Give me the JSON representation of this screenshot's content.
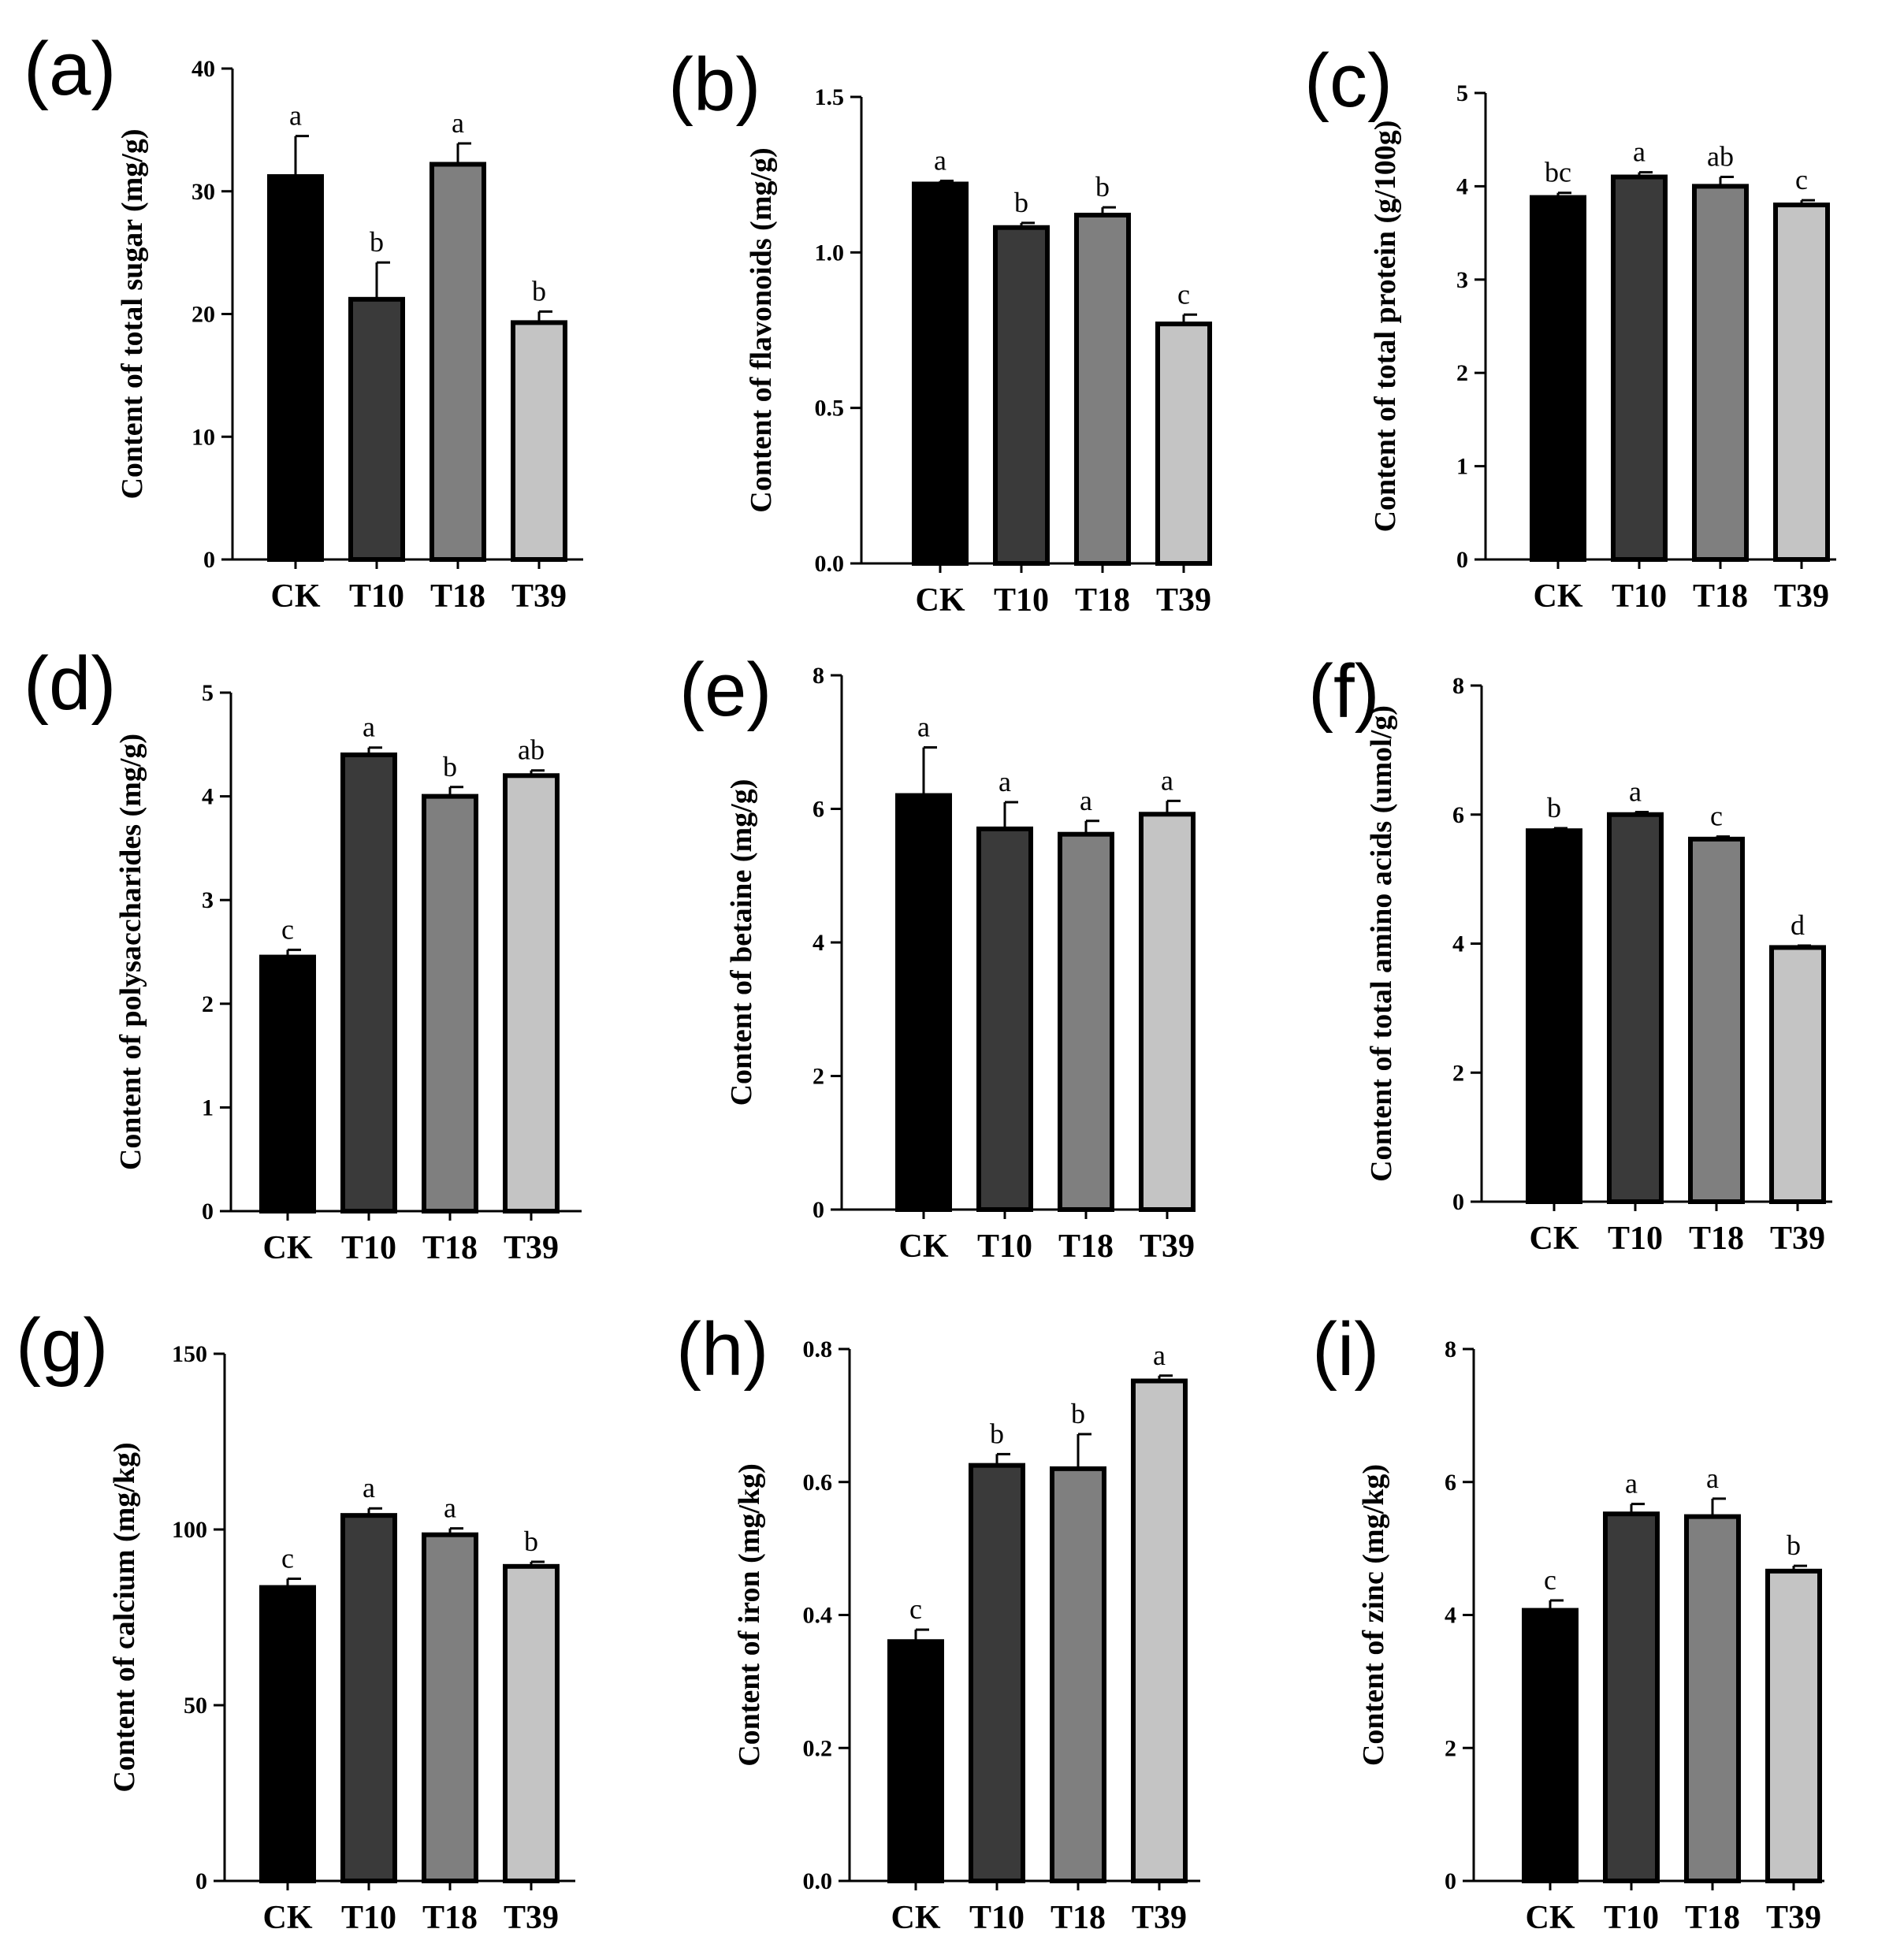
{
  "chart_data": [
    {
      "type": "bar",
      "panel": "(a)",
      "categories": [
        "CK",
        "T10",
        "T18",
        "T39"
      ],
      "values": [
        31.2,
        21.2,
        32.2,
        19.3
      ],
      "errors": [
        3.3,
        3.0,
        1.7,
        0.9
      ],
      "significance": [
        "a",
        "b",
        "a",
        "b"
      ],
      "bar_colors": [
        "#000000",
        "#3a3a3a",
        "#7f7f7f",
        "#c4c4c4"
      ],
      "ylabel": "Content of total sugar (mg/g)",
      "xlabel": "",
      "ylim": [
        0,
        40
      ],
      "yticks": [
        0,
        10,
        20,
        30,
        40
      ],
      "ytick_labels": [
        "0",
        "10",
        "20",
        "30",
        "40"
      ]
    },
    {
      "type": "bar",
      "panel": "(b)",
      "categories": [
        "CK",
        "T10",
        "T18",
        "T39"
      ],
      "values": [
        1.22,
        1.08,
        1.12,
        0.77
      ],
      "errors": [
        0.01,
        0.015,
        0.025,
        0.03
      ],
      "significance": [
        "a",
        "b",
        "b",
        "c"
      ],
      "bar_colors": [
        "#000000",
        "#3a3a3a",
        "#7f7f7f",
        "#c4c4c4"
      ],
      "ylabel": "Content of flavonoids (mg/g)",
      "xlabel": "",
      "ylim": [
        0,
        1.5
      ],
      "yticks": [
        0,
        0.5,
        1.0,
        1.5
      ],
      "ytick_labels": [
        "0.0",
        "0.5",
        "1.0",
        "1.5"
      ]
    },
    {
      "type": "bar",
      "panel": "(c)",
      "categories": [
        "CK",
        "T10",
        "T18",
        "T39"
      ],
      "values": [
        3.88,
        4.1,
        4.0,
        3.8
      ],
      "errors": [
        0.05,
        0.05,
        0.1,
        0.05
      ],
      "significance": [
        "bc",
        "a",
        "ab",
        "c"
      ],
      "bar_colors": [
        "#000000",
        "#3a3a3a",
        "#7f7f7f",
        "#c4c4c4"
      ],
      "ylabel": "Content of total protein (g/100g)",
      "xlabel": "",
      "ylim": [
        0,
        5
      ],
      "yticks": [
        0,
        1,
        2,
        3,
        4,
        5
      ],
      "ytick_labels": [
        "0",
        "1",
        "2",
        "3",
        "4",
        "5"
      ]
    },
    {
      "type": "bar",
      "panel": "(d)",
      "categories": [
        "CK",
        "T10",
        "T18",
        "T39"
      ],
      "values": [
        2.45,
        4.4,
        4.0,
        4.2
      ],
      "errors": [
        0.07,
        0.07,
        0.09,
        0.05
      ],
      "significance": [
        "c",
        "a",
        "b",
        "ab"
      ],
      "bar_colors": [
        "#000000",
        "#3a3a3a",
        "#7f7f7f",
        "#c4c4c4"
      ],
      "ylabel": "Content of polysaccharides (mg/g)",
      "xlabel": "",
      "ylim": [
        0,
        5
      ],
      "yticks": [
        0,
        1,
        2,
        3,
        4,
        5
      ],
      "ytick_labels": [
        "0",
        "1",
        "2",
        "3",
        "4",
        "5"
      ]
    },
    {
      "type": "bar",
      "panel": "(e)",
      "categories": [
        "CK",
        "T10",
        "T18",
        "T39"
      ],
      "values": [
        6.2,
        5.7,
        5.62,
        5.92
      ],
      "errors": [
        0.72,
        0.4,
        0.2,
        0.2
      ],
      "significance": [
        "a",
        "a",
        "a",
        "a"
      ],
      "bar_colors": [
        "#000000",
        "#3a3a3a",
        "#7f7f7f",
        "#c4c4c4"
      ],
      "ylabel": "Content of betaine (mg/g)",
      "xlabel": "",
      "ylim": [
        0,
        8
      ],
      "yticks": [
        0,
        2,
        4,
        6,
        8
      ],
      "ytick_labels": [
        "0",
        "2",
        "4",
        "6",
        "8"
      ]
    },
    {
      "type": "bar",
      "panel": "(f)",
      "categories": [
        "CK",
        "T10",
        "T18",
        "T39"
      ],
      "values": [
        5.75,
        6.0,
        5.62,
        3.94
      ],
      "errors": [
        0.04,
        0.04,
        0.04,
        0.03
      ],
      "significance": [
        "b",
        "a",
        "c",
        "d"
      ],
      "bar_colors": [
        "#000000",
        "#3a3a3a",
        "#7f7f7f",
        "#c4c4c4"
      ],
      "ylabel": "Content of total amino acids (umol/g)",
      "xlabel": "",
      "ylim": [
        0,
        8
      ],
      "yticks": [
        0,
        2,
        4,
        6,
        8
      ],
      "ytick_labels": [
        "0",
        "2",
        "4",
        "6",
        "8"
      ]
    },
    {
      "type": "bar",
      "panel": "(g)",
      "categories": [
        "CK",
        "T10",
        "T18",
        "T39"
      ],
      "values": [
        83.5,
        104.0,
        98.5,
        89.5
      ],
      "errors": [
        2.5,
        2.0,
        1.8,
        1.3
      ],
      "significance": [
        "c",
        "a",
        "a",
        "b"
      ],
      "bar_colors": [
        "#000000",
        "#3a3a3a",
        "#7f7f7f",
        "#c4c4c4"
      ],
      "ylabel": "Content of calcium (mg/kg)",
      "xlabel": "",
      "ylim": [
        0,
        150
      ],
      "yticks": [
        0,
        50,
        100,
        150
      ],
      "ytick_labels": [
        "0",
        "50",
        "100",
        "150"
      ]
    },
    {
      "type": "bar",
      "panel": "(h)",
      "categories": [
        "CK",
        "T10",
        "T18",
        "T39"
      ],
      "values": [
        0.36,
        0.625,
        0.62,
        0.752
      ],
      "errors": [
        0.018,
        0.017,
        0.052,
        0.008
      ],
      "significance": [
        "c",
        "b",
        "b",
        "a"
      ],
      "bar_colors": [
        "#000000",
        "#3a3a3a",
        "#7f7f7f",
        "#c4c4c4"
      ],
      "ylabel": "Content of iron (mg/kg)",
      "xlabel": "",
      "ylim": [
        0,
        0.8
      ],
      "yticks": [
        0,
        0.2,
        0.4,
        0.6,
        0.8
      ],
      "ytick_labels": [
        "0.0",
        "0.2",
        "0.4",
        "0.6",
        "0.8"
      ]
    },
    {
      "type": "bar",
      "panel": "(i)",
      "categories": [
        "CK",
        "T10",
        "T18",
        "T39"
      ],
      "values": [
        4.07,
        5.52,
        5.48,
        4.66
      ],
      "errors": [
        0.15,
        0.15,
        0.27,
        0.08
      ],
      "significance": [
        "c",
        "a",
        "a",
        "b"
      ],
      "bar_colors": [
        "#000000",
        "#3a3a3a",
        "#7f7f7f",
        "#c4c4c4"
      ],
      "ylabel": "Content of zinc (mg/kg)",
      "xlabel": "",
      "ylim": [
        0,
        8
      ],
      "yticks": [
        0,
        2,
        4,
        6,
        8
      ],
      "ytick_labels": [
        "0",
        "2",
        "4",
        "6",
        "8"
      ]
    }
  ]
}
